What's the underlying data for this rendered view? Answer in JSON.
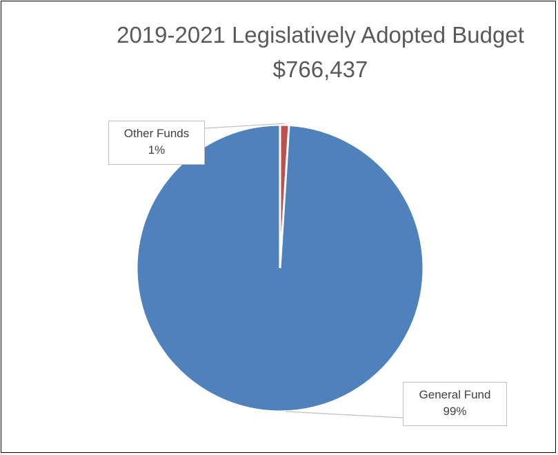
{
  "chart_data": {
    "type": "pie",
    "title": "2019-2021 Legislatively Adopted Budget",
    "subtitle": "$766,437",
    "slices": [
      {
        "label": "General Fund",
        "value": 99,
        "display": "99%",
        "color": "#4f81bd"
      },
      {
        "label": "Other Funds",
        "value": 1,
        "display": "1%",
        "color": "#c0504d"
      }
    ],
    "legend": "none"
  }
}
